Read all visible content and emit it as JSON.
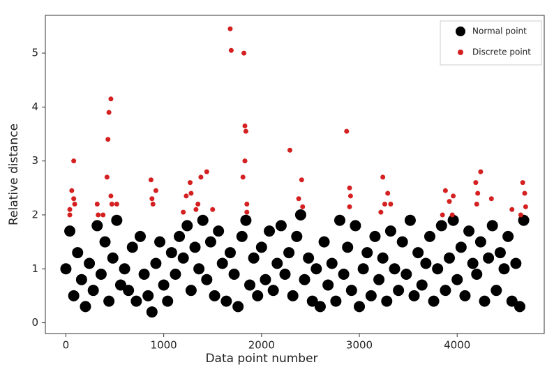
{
  "chart_data": {
    "type": "scatter",
    "xlabel": "Data point number",
    "ylabel": "Relative distance",
    "xlim": [
      -210,
      4890
    ],
    "ylim": [
      -0.2,
      5.7
    ],
    "xticks": [
      0,
      1000,
      2000,
      3000,
      4000
    ],
    "yticks": [
      0,
      1,
      2,
      3,
      4,
      5
    ],
    "legend": "upper right",
    "series": [
      {
        "name": "Normal point",
        "color": "#000000",
        "x": [
          0,
          40,
          80,
          120,
          160,
          200,
          240,
          280,
          320,
          360,
          400,
          440,
          480,
          520,
          560,
          600,
          640,
          680,
          720,
          760,
          800,
          840,
          880,
          920,
          960,
          1000,
          1040,
          1080,
          1120,
          1160,
          1200,
          1240,
          1280,
          1320,
          1360,
          1400,
          1440,
          1480,
          1520,
          1560,
          1600,
          1640,
          1680,
          1720,
          1760,
          1800,
          1840,
          1880,
          1920,
          1960,
          2000,
          2040,
          2080,
          2120,
          2160,
          2200,
          2240,
          2280,
          2320,
          2360,
          2400,
          2440,
          2480,
          2520,
          2560,
          2600,
          2640,
          2680,
          2720,
          2760,
          2800,
          2840,
          2880,
          2920,
          2960,
          3000,
          3040,
          3080,
          3120,
          3160,
          3200,
          3240,
          3280,
          3320,
          3360,
          3400,
          3440,
          3480,
          3520,
          3560,
          3600,
          3640,
          3680,
          3720,
          3760,
          3800,
          3840,
          3880,
          3920,
          3960,
          4000,
          4040,
          4080,
          4120,
          4160,
          4200,
          4240,
          4280,
          4320,
          4360,
          4400,
          4440,
          4480,
          4520,
          4560,
          4600,
          4640,
          4680
        ],
        "values": [
          1.0,
          1.7,
          0.5,
          1.3,
          0.8,
          0.3,
          1.1,
          0.6,
          1.8,
          0.9,
          1.5,
          0.4,
          1.2,
          1.9,
          0.7,
          1.0,
          0.6,
          1.4,
          0.4,
          1.6,
          0.9,
          0.5,
          0.2,
          1.1,
          1.5,
          0.7,
          0.4,
          1.3,
          0.9,
          1.6,
          1.2,
          1.8,
          0.6,
          1.4,
          1.0,
          1.9,
          0.8,
          1.5,
          0.5,
          1.7,
          1.1,
          0.4,
          1.3,
          0.9,
          0.3,
          1.6,
          1.9,
          0.7,
          1.2,
          0.5,
          1.4,
          0.8,
          1.7,
          0.6,
          1.1,
          1.8,
          0.9,
          1.3,
          0.5,
          1.6,
          2.0,
          0.8,
          1.2,
          0.4,
          1.0,
          0.3,
          1.5,
          0.7,
          1.1,
          0.4,
          1.9,
          0.9,
          1.4,
          0.6,
          1.8,
          0.3,
          1.0,
          1.3,
          0.5,
          1.6,
          0.8,
          1.2,
          0.4,
          1.7,
          1.0,
          0.6,
          1.5,
          0.9,
          1.9,
          0.5,
          1.3,
          0.7,
          1.1,
          1.6,
          0.4,
          1.0,
          1.8,
          0.6,
          1.2,
          1.9,
          0.8,
          1.4,
          0.5,
          1.7,
          1.1,
          0.9,
          1.5,
          0.4,
          1.2,
          1.8,
          0.6,
          1.3,
          1.0,
          1.6,
          0.4,
          1.1,
          0.3,
          1.9
        ]
      },
      {
        "name": "Discrete point",
        "color": "#d42020",
        "x": [
          40,
          40,
          60,
          80,
          80,
          90,
          320,
          330,
          380,
          420,
          430,
          440,
          460,
          460,
          470,
          520,
          870,
          880,
          890,
          920,
          1200,
          1230,
          1270,
          1280,
          1330,
          1350,
          1380,
          1440,
          1500,
          1680,
          1690,
          1810,
          1820,
          1830,
          1840,
          1830,
          1850,
          1850,
          2290,
          2410,
          2380,
          2420,
          2870,
          2900,
          2910,
          2900,
          3220,
          3240,
          3260,
          3290,
          3320,
          3850,
          3880,
          3920,
          3960,
          3950,
          4190,
          4210,
          4240,
          4200,
          4350,
          4560,
          4670,
          4690,
          4700,
          4650
        ],
        "values": [
          2.0,
          2.1,
          2.45,
          3.0,
          2.3,
          2.2,
          2.2,
          2.0,
          2.0,
          2.7,
          3.4,
          3.9,
          4.15,
          2.35,
          2.2,
          2.2,
          2.65,
          2.3,
          2.2,
          2.45,
          2.05,
          2.35,
          2.6,
          2.4,
          2.1,
          2.2,
          2.7,
          2.8,
          2.1,
          5.45,
          5.05,
          2.7,
          5.0,
          3.65,
          3.55,
          3.0,
          2.2,
          2.05,
          3.2,
          2.65,
          2.3,
          2.15,
          3.55,
          2.5,
          2.35,
          2.15,
          2.05,
          2.7,
          2.2,
          2.4,
          2.2,
          2.0,
          2.45,
          2.25,
          2.35,
          2.0,
          2.6,
          2.4,
          2.8,
          2.2,
          2.3,
          2.1,
          2.6,
          2.4,
          2.15,
          2.0
        ]
      }
    ]
  }
}
